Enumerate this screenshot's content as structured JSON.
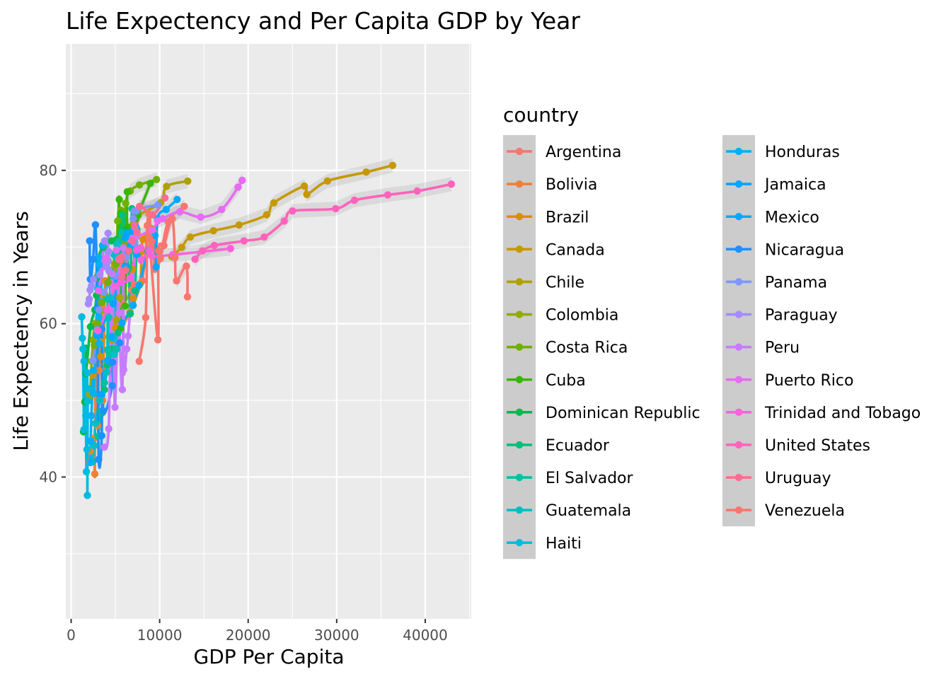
{
  "chart_data": {
    "type": "scatter",
    "title": "Life Expectency and Per Capita GDP by Year",
    "xlabel": "GDP Per Capita",
    "ylabel": "Life Expectency in Years",
    "xlim": [
      -600,
      45200
    ],
    "ylim": [
      21.5,
      96.5
    ],
    "x_ticks": [
      0,
      10000,
      20000,
      30000,
      40000
    ],
    "x_tick_labels": [
      "0",
      "10000",
      "20000",
      "30000",
      "40000"
    ],
    "y_ticks": [
      40,
      60,
      80
    ],
    "y_tick_labels": [
      "40",
      "60",
      "80"
    ],
    "grid": true,
    "smooth_lines": true,
    "legend": {
      "title": "country",
      "position": "right",
      "columns": 2
    },
    "series": [
      {
        "name": "Argentina",
        "color": "#F8766D",
        "x": [
          5911,
          6857,
          7133,
          8052,
          9443,
          10079,
          8998,
          9140,
          9308,
          10967,
          8798,
          12779
        ],
        "y": [
          62.5,
          64.4,
          65.1,
          65.6,
          67.1,
          68.5,
          69.9,
          70.8,
          71.9,
          73.3,
          74.3,
          75.3
        ]
      },
      {
        "name": "Bolivia",
        "color": "#EC8239",
        "x": [
          2677,
          2128,
          2180,
          2587,
          2980,
          3548,
          3157,
          2754,
          2962,
          3326,
          3413,
          3822
        ],
        "y": [
          40.4,
          41.9,
          43.4,
          45.0,
          46.7,
          50.0,
          53.9,
          57.3,
          59.96,
          62.1,
          63.9,
          65.6
        ]
      },
      {
        "name": "Brazil",
        "color": "#DB8E00",
        "x": [
          2109,
          2487,
          3337,
          3430,
          4986,
          6660,
          7031,
          7807,
          6950,
          7958,
          8131,
          9066
        ],
        "y": [
          50.9,
          53.3,
          55.7,
          57.6,
          59.5,
          61.5,
          63.3,
          65.2,
          67.1,
          69.4,
          71.0,
          72.4
        ]
      },
      {
        "name": "Canada",
        "color": "#C69900",
        "x": [
          11367,
          12490,
          13462,
          16077,
          18971,
          22091,
          22899,
          26627,
          26343,
          28955,
          33329,
          36319
        ],
        "y": [
          68.75,
          69.96,
          71.3,
          72.13,
          72.88,
          74.21,
          75.76,
          76.86,
          77.95,
          78.61,
          79.77,
          80.65
        ]
      },
      {
        "name": "Chile",
        "color": "#AEA200",
        "x": [
          3940,
          4316,
          4599,
          5107,
          5494,
          4757,
          5956,
          6987,
          7577,
          10118,
          10779,
          13172
        ],
        "y": [
          54.7,
          56.1,
          57.9,
          60.5,
          63.4,
          67.1,
          70.6,
          72.5,
          74.1,
          75.8,
          77.9,
          78.6
        ]
      },
      {
        "name": "Colombia",
        "color": "#93AA00",
        "x": [
          2144,
          2323,
          2493,
          2679,
          3265,
          3816,
          4398,
          4903,
          5445,
          6117,
          5755,
          7007
        ],
        "y": [
          50.6,
          55.1,
          57.9,
          60.0,
          61.6,
          63.8,
          66.7,
          67.8,
          68.4,
          70.3,
          71.7,
          72.9
        ]
      },
      {
        "name": "Costa Rica",
        "color": "#70B000",
        "x": [
          2627,
          2990,
          3461,
          4162,
          5119,
          5928,
          5262,
          5629,
          6161,
          6677,
          7723,
          9645
        ],
        "y": [
          57.2,
          60.0,
          62.8,
          65.4,
          67.8,
          70.8,
          73.4,
          74.8,
          75.7,
          77.3,
          78.1,
          78.8
        ]
      },
      {
        "name": "Cuba",
        "color": "#39B600",
        "x": [
          5587,
          6093,
          5181,
          5690,
          5305,
          6380,
          7317,
          7533,
          5593,
          5432,
          6341,
          8948
        ],
        "y": [
          59.4,
          62.3,
          65.2,
          68.3,
          70.7,
          72.6,
          73.7,
          74.2,
          74.4,
          76.2,
          77.2,
          78.3
        ]
      },
      {
        "name": "Dominican Republic",
        "color": "#00BB4E",
        "x": [
          1398,
          1544,
          1662,
          1653,
          2189,
          2682,
          2861,
          2900,
          3045,
          3614,
          4564,
          6025
        ],
        "y": [
          45.9,
          49.8,
          53.5,
          56.8,
          59.6,
          61.8,
          63.7,
          66.0,
          68.5,
          69.96,
          70.8,
          72.2
        ]
      },
      {
        "name": "Ecuador",
        "color": "#00BF7D",
        "x": [
          3522,
          3780,
          4087,
          4579,
          5281,
          6680,
          7214,
          6482,
          7104,
          7429,
          5773,
          6873
        ],
        "y": [
          48.4,
          51.4,
          54.6,
          56.7,
          58.8,
          61.3,
          64.3,
          67.2,
          69.6,
          72.3,
          74.2,
          75.0
        ]
      },
      {
        "name": "El Salvador",
        "color": "#00C1A3",
        "x": [
          3048,
          3421,
          3776,
          4359,
          4520,
          5139,
          4098,
          4141,
          4444,
          5155,
          5351,
          5728
        ],
        "y": [
          45.3,
          48.6,
          52.3,
          55.9,
          58.2,
          56.7,
          56.6,
          63.2,
          66.8,
          69.5,
          70.7,
          71.9
        ]
      },
      {
        "name": "Guatemala",
        "color": "#00BFC4",
        "x": [
          2428,
          2617,
          2750,
          3243,
          4031,
          4880,
          4820,
          4246,
          4439,
          4684,
          4858,
          5186
        ],
        "y": [
          42.0,
          44.1,
          47.0,
          50.0,
          53.7,
          56.0,
          58.1,
          60.8,
          63.4,
          66.3,
          68.98,
          70.3
        ]
      },
      {
        "name": "Haiti",
        "color": "#00BAE0",
        "x": [
          1840,
          1727,
          1797,
          1453,
          1654,
          1875,
          2012,
          1823,
          1457,
          1342,
          1270,
          1202
        ],
        "y": [
          37.6,
          40.7,
          43.6,
          46.2,
          48.0,
          49.9,
          51.5,
          53.6,
          55.1,
          56.7,
          58.1,
          60.9
        ]
      },
      {
        "name": "Honduras",
        "color": "#00B0F6",
        "x": [
          2195,
          2220,
          2291,
          2538,
          2529,
          3203,
          3121,
          3023,
          3082,
          3160,
          3099,
          3548
        ],
        "y": [
          41.9,
          44.7,
          48.0,
          50.9,
          53.9,
          57.4,
          60.9,
          64.5,
          66.4,
          67.7,
          68.6,
          70.2
        ]
      },
      {
        "name": "Jamaica",
        "color": "#00A5FF",
        "x": [
          2899,
          4756,
          5246,
          6125,
          7434,
          6650,
          6068,
          6351,
          7405,
          7122,
          6995,
          7321
        ],
        "y": [
          58.5,
          62.6,
          65.6,
          67.5,
          69.0,
          70.1,
          71.2,
          71.8,
          71.8,
          72.3,
          72.05,
          72.6
        ]
      },
      {
        "name": "Mexico",
        "color": "#00A9FF",
        "x": [
          3478,
          4132,
          4582,
          5755,
          7012,
          7675,
          9611,
          8688,
          9472,
          9767,
          10742,
          11978
        ],
        "y": [
          50.8,
          55.2,
          58.3,
          60.1,
          62.4,
          65.0,
          67.4,
          69.5,
          71.5,
          73.7,
          74.9,
          76.2
        ]
      },
      {
        "name": "Nicaragua",
        "color": "#1E90FF",
        "x": [
          3112,
          3458,
          3635,
          4643,
          4689,
          5487,
          3471,
          2955,
          2171,
          2474,
          2092,
          2749
        ],
        "y": [
          42.3,
          45.4,
          48.6,
          51.9,
          54.98,
          57.5,
          59.3,
          62.0,
          65.8,
          68.4,
          70.8,
          72.9
        ]
      },
      {
        "name": "Panama",
        "color": "#7F96FF",
        "x": [
          2480,
          2961,
          3149,
          3707,
          5129,
          6290,
          7140,
          7224,
          7031,
          7113,
          7357,
          9809
        ],
        "y": [
          55.2,
          59.2,
          61.8,
          64.1,
          66.2,
          68.7,
          70.5,
          72.5,
          73.7,
          74.7,
          74.7,
          75.5
        ]
      },
      {
        "name": "Paraguay",
        "color": "#A58AFF",
        "x": [
          1952,
          2046,
          2148,
          2299,
          2523,
          3248,
          4259,
          3998,
          4196,
          4248,
          3783,
          4173
        ],
        "y": [
          62.6,
          63.2,
          64.4,
          64.95,
          65.8,
          66.4,
          66.9,
          67.4,
          68.2,
          69.4,
          70.8,
          71.8
        ]
      },
      {
        "name": "Peru",
        "color": "#C77CFF",
        "x": [
          3759,
          4245,
          4957,
          5788,
          5938,
          6281,
          6435,
          5410,
          4623,
          5389,
          5909,
          7409
        ],
        "y": [
          43.9,
          46.3,
          49.1,
          51.4,
          54.0,
          56.7,
          58.4,
          61.4,
          66.5,
          68.4,
          69.9,
          71.4
        ]
      },
      {
        "name": "Puerto Rico",
        "color": "#E76BF3",
        "x": [
          3081,
          3908,
          5108,
          6930,
          9123,
          9771,
          10330,
          12281,
          14642,
          16999,
          18855,
          19329
        ],
        "y": [
          64.3,
          68.5,
          69.6,
          71.1,
          72.2,
          73.4,
          73.7,
          74.6,
          73.9,
          74.9,
          77.8,
          78.7
        ]
      },
      {
        "name": "Trinidad and Tobago",
        "color": "#FA62DB",
        "x": [
          3023,
          4101,
          4998,
          5622,
          6619,
          7899,
          9119,
          7389,
          7876,
          8792,
          11461,
          18009
        ],
        "y": [
          59.1,
          61.8,
          64.9,
          65.4,
          65.9,
          68.3,
          68.8,
          69.6,
          69.9,
          69.5,
          68.98,
          69.8
        ]
      },
      {
        "name": "United States",
        "color": "#FF62BC",
        "x": [
          13990,
          14847,
          16173,
          19530,
          21806,
          24073,
          25010,
          29884,
          32004,
          35767,
          39097,
          42952
        ],
        "y": [
          68.4,
          69.5,
          70.2,
          70.8,
          71.3,
          73.4,
          74.7,
          75.0,
          76.1,
          76.8,
          77.3,
          78.2
        ]
      },
      {
        "name": "Uruguay",
        "color": "#FF6C91",
        "x": [
          5717,
          6150,
          5603,
          5445,
          5703,
          6504,
          6920,
          7453,
          7139,
          9231,
          7727,
          10611
        ],
        "y": [
          66.1,
          67.0,
          68.3,
          68.5,
          68.7,
          69.5,
          70.8,
          71.9,
          72.8,
          74.2,
          75.3,
          76.4
        ]
      },
      {
        "name": "Venezuela",
        "color": "#F8766D",
        "x": [
          7690,
          9803,
          8423,
          13143,
          11907,
          13022,
          11732,
          9883,
          10476,
          8834,
          8605,
          11416
        ],
        "y": [
          55.1,
          57.9,
          60.8,
          63.5,
          65.6,
          67.5,
          68.6,
          69.5,
          70.2,
          71.2,
          72.8,
          73.7
        ]
      }
    ]
  }
}
